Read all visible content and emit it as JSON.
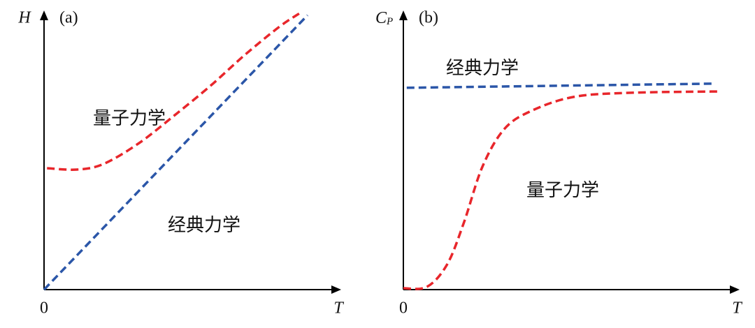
{
  "chart_data": [
    {
      "type": "line",
      "title": "(a)",
      "y_label": "H",
      "x_label": "T",
      "xlim": [
        0,
        10
      ],
      "ylim": [
        0,
        10
      ],
      "xticks": [
        0
      ],
      "series": [
        {
          "name": "量子力学",
          "color": "#e8262b",
          "x": [
            0.1,
            1.1,
            2,
            3.2,
            4.4,
            5.6,
            6.75,
            7.9,
            8.6
          ],
          "values": [
            4.35,
            4.3,
            4.5,
            5.25,
            6.25,
            7.3,
            8.4,
            9.4,
            9.9
          ]
        },
        {
          "name": "经典力学",
          "color": "#2b56a8",
          "x": [
            0,
            8.87
          ],
          "values": [
            0,
            9.83
          ]
        }
      ]
    },
    {
      "type": "line",
      "title": "(b)",
      "y_label": {
        "main": "C",
        "sub": "P"
      },
      "x_label": "T",
      "xlim": [
        0,
        10
      ],
      "ylim": [
        0,
        10
      ],
      "xticks": [
        0
      ],
      "series": [
        {
          "name": "经典力学",
          "color": "#2b56a8",
          "x": [
            0.1,
            9.25
          ],
          "values": [
            7.23,
            7.38
          ]
        },
        {
          "name": "量子力学",
          "color": "#e8262b",
          "x": [
            0,
            0.7,
            1.3,
            1.8,
            2.35,
            3,
            3.8,
            5.05,
            6.7,
            9.45
          ],
          "values": [
            0.05,
            0.1,
            0.9,
            2.4,
            4.4,
            5.75,
            6.4,
            6.9,
            7.05,
            7.1
          ]
        }
      ]
    }
  ]
}
